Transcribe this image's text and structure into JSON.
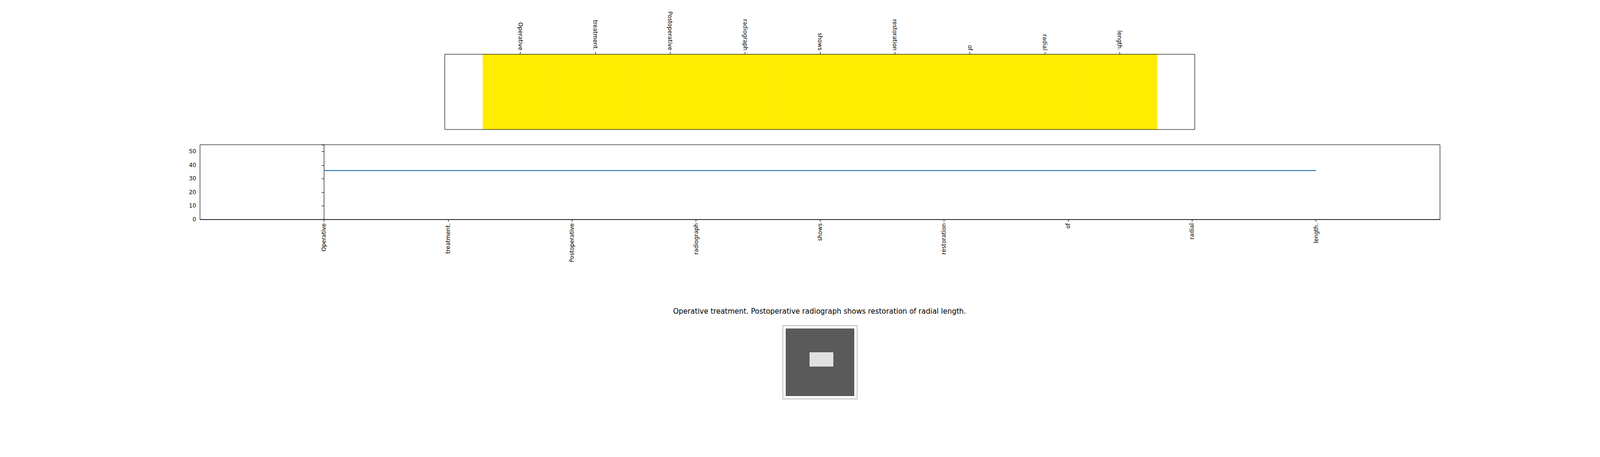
{
  "chart_data": [
    {
      "type": "heatmap",
      "categories": [
        "Operative",
        "treatment.",
        "Postoperative",
        "radiograph",
        "shows",
        "restoration",
        "of",
        "radial",
        "length."
      ],
      "values": [
        36,
        36,
        36,
        36,
        36,
        36,
        36,
        36,
        36
      ],
      "color": "#ffec00",
      "tick_labels": "x"
    },
    {
      "type": "line",
      "categories": [
        "Operative",
        "treatment.",
        "Postoperative",
        "radiograph",
        "shows",
        "restoration",
        "of",
        "radial",
        "length."
      ],
      "values": [
        36,
        36,
        36,
        36,
        36,
        36,
        36,
        36,
        36
      ],
      "color": "#1f77b4",
      "xlim": [
        -1,
        9
      ],
      "ylim": [
        0,
        55
      ],
      "yticks": [
        0,
        10,
        20,
        30,
        40,
        50
      ]
    }
  ],
  "caption": "Operative treatment. Postoperative radiograph shows restoration of radial length."
}
